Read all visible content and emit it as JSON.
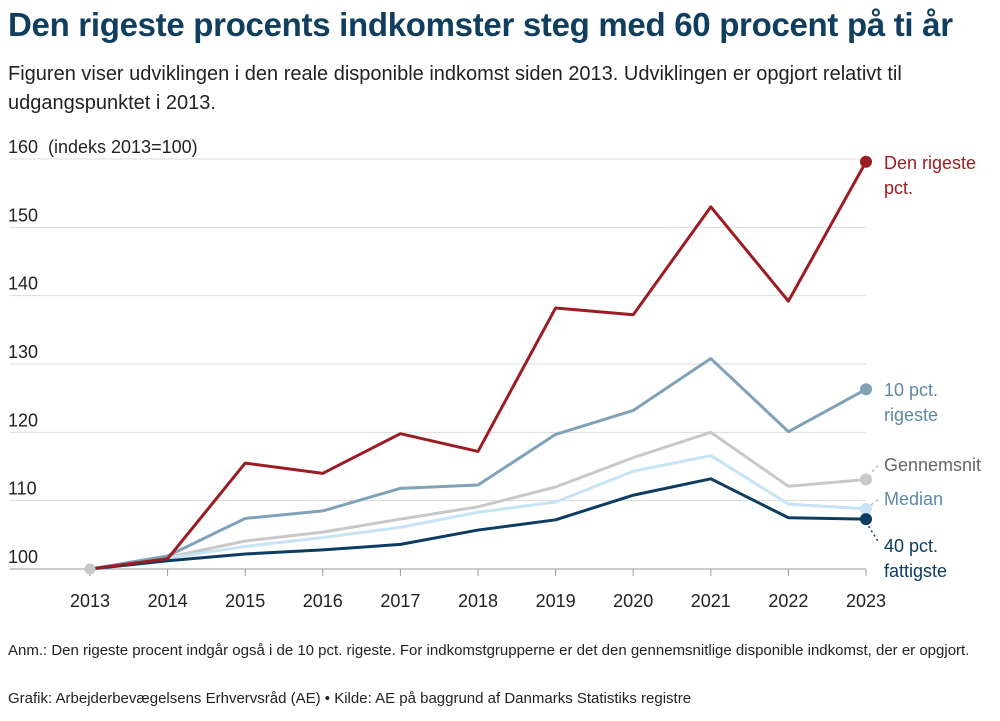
{
  "header": {
    "title": "Den rigeste procents indkomster steg med 60 procent på ti år",
    "subtitle": "Figuren viser udviklingen i den reale disponible indkomst siden 2013. Udviklingen er opgjort relativt til udgangspunktet i 2013."
  },
  "footer": {
    "note": "Anm.: Den rigeste procent indgår også i de 10 pct. rigeste. For indkomstgrupperne er det den gennemsnitlige disponible indkomst, der er opgjort.",
    "source": "Grafik: Arbejderbevægelsens Erhvervsråd (AE) • Kilde: AE på baggrund af Danmarks Statistiks registre"
  },
  "chart_data": {
    "type": "line",
    "title": "Den rigeste procents indkomster steg med 60 procent på ti år",
    "ylabel": "(indeks 2013=100)",
    "xlabel": "",
    "x": [
      2013,
      2014,
      2015,
      2016,
      2017,
      2018,
      2019,
      2020,
      2021,
      2022,
      2023
    ],
    "ylim": [
      100,
      160
    ],
    "yticks": [
      100,
      110,
      120,
      130,
      140,
      150,
      160
    ],
    "ytick_labels": [
      "100",
      "110",
      "120",
      "130",
      "140",
      "150",
      "160"
    ],
    "grid": true,
    "series": [
      {
        "name": "Den rigeste pct.",
        "label_lines": [
          "Den rigeste",
          "pct."
        ],
        "color": "#9b1c22",
        "values": [
          100,
          101.5,
          115.5,
          114,
          119.8,
          117.2,
          138.2,
          137.2,
          153,
          139.2,
          159.6
        ]
      },
      {
        "name": "10 pct. rigeste",
        "label_lines": [
          "10 pct.",
          "rigeste"
        ],
        "color": "#7fa2b8",
        "values": [
          100,
          101.9,
          107.4,
          108.5,
          111.8,
          112.3,
          119.7,
          123.2,
          130.8,
          120.1,
          126.3
        ]
      },
      {
        "name": "Gennemsnit",
        "label_lines": [
          "Gennemsnit"
        ],
        "color": "#c8c8c8",
        "values": [
          100,
          101.7,
          104.1,
          105.4,
          107.3,
          109.1,
          112.0,
          116.3,
          120.0,
          112.1,
          113.1
        ]
      },
      {
        "name": "Median",
        "label_lines": [
          "Median"
        ],
        "color": "#c6e4f3",
        "values": [
          100,
          101.6,
          103.3,
          104.6,
          106.1,
          108.3,
          109.8,
          114.3,
          116.6,
          109.5,
          108.8
        ]
      },
      {
        "name": "40 pct. fattigste",
        "label_lines": [
          "40 pct.",
          "fattigste"
        ],
        "color": "#0d3c61",
        "values": [
          100,
          101.2,
          102.2,
          102.8,
          103.6,
          105.7,
          107.2,
          110.8,
          113.2,
          107.5,
          107.3
        ]
      }
    ]
  }
}
